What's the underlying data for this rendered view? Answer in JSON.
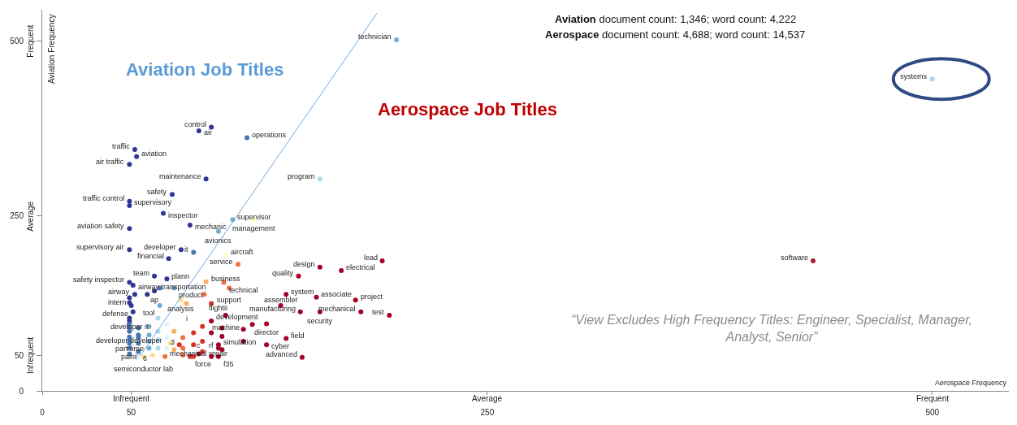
{
  "chart_data": {
    "type": "scatter",
    "xlabel": "Aerospace Frequency",
    "ylabel": "Aviation Frequency",
    "xlim": [
      0,
      543
    ],
    "ylim": [
      0,
      545
    ],
    "xticks": [
      0,
      50,
      250,
      500
    ],
    "yticks": [
      0,
      50,
      250,
      500
    ],
    "marker": "circle",
    "series": [
      {
        "type": "scatter",
        "x": [
          199,
          500,
          95,
          88,
          115,
          52,
          53,
          49,
          92,
          73,
          49,
          49,
          68,
          49,
          83,
          107,
          119,
          99,
          156,
          49,
          78,
          85,
          71,
          103,
          63,
          70,
          49,
          51,
          63,
          74,
          92,
          102,
          78,
          105,
          91,
          110,
          66,
          81,
          52,
          50,
          51,
          49,
          49,
          49,
          49,
          54,
          57,
          69,
          83,
          77,
          95,
          103,
          99,
          99,
          99,
          88,
          137,
          156,
          144,
          168,
          191,
          154,
          176,
          179,
          156,
          145,
          134,
          195,
          126,
          137,
          126,
          146,
          433,
          66,
          59,
          49,
          49,
          49,
          49,
          49,
          49,
          49,
          49,
          54,
          54,
          54,
          54,
          54,
          60,
          60,
          60,
          60,
          65,
          65,
          65,
          65,
          70,
          70,
          70,
          62,
          72,
          74,
          74,
          79,
          79,
          79,
          85,
          85,
          85,
          90,
          90,
          90,
          95,
          95,
          95,
          101,
          101,
          101,
          113,
          113,
          118
        ],
        "values": [
          502,
          446,
          377,
          372,
          362,
          345,
          335,
          324,
          303,
          281,
          271,
          265,
          254,
          232,
          237,
          245,
          245,
          228,
          303,
          202,
          202,
          198,
          189,
          194,
          164,
          160,
          155,
          151,
          143,
          147,
          156,
          155,
          130,
          147,
          138,
          181,
          122,
          125,
          138,
          122,
          113,
          104,
          85,
          73,
          61,
          49,
          49,
          49,
          49,
          66,
          125,
          108,
          66,
          61,
          49,
          53,
          138,
          177,
          164,
          172,
          186,
          134,
          130,
          113,
          113,
          113,
          122,
          108,
          96,
          75,
          66,
          48,
          186,
          147,
          138,
          133,
          126,
          100,
          95,
          90,
          77,
          68,
          53,
          90,
          80,
          76,
          68,
          56,
          92,
          80,
          71,
          61,
          104,
          85,
          73,
          61,
          95,
          76,
          61,
          51,
          68,
          59,
          85,
          51,
          61,
          76,
          49,
          66,
          83,
          56,
          71,
          92,
          49,
          83,
          100,
          59,
          78,
          90,
          71,
          88,
          95
        ],
        "colors": [
          "#74add1",
          "#abd9e9",
          "#313695",
          "#313695",
          "#4575b4",
          "#313695",
          "#313695",
          "#313695",
          "#313695",
          "#313695",
          "#313695",
          "#313695",
          "#313695",
          "#313695",
          "#313695",
          "#74add1",
          "#ffffbf",
          "#74add1",
          "#abd9e9",
          "#313695",
          "#313695",
          "#4575b4",
          "#313695",
          "#ffffbf",
          "#313695",
          "#313695",
          "#313695",
          "#313695",
          "#313695",
          "#74add1",
          "#fdae61",
          "#f46d43",
          "#fee090",
          "#f46d43",
          "#f46d43",
          "#f46d43",
          "#74add1",
          "#fdae61",
          "#313695",
          "#313695",
          "#313695",
          "#313695",
          "#4575b4",
          "#4575b4",
          "#4575b4",
          "#e0f3f8",
          "#fee090",
          "#f46d43",
          "#d73027",
          "#d73027",
          "#d73027",
          "#a50026",
          "#a50026",
          "#a50026",
          "#a50026",
          "#a50026",
          "#a50026",
          "#a50026",
          "#a50026",
          "#a50026",
          "#a50026",
          "#a50026",
          "#a50026",
          "#a50026",
          "#a50026",
          "#a50026",
          "#a50026",
          "#a50026",
          "#a50026",
          "#a50026",
          "#a50026",
          "#a50026",
          "#b2182b",
          "#4575b4",
          "#313695",
          "#313695",
          "#313695",
          "#313695",
          "#4575b4",
          "#4575b4",
          "#4575b4",
          "#4575b4",
          "#4575b4",
          "#4575b4",
          "#4575b4",
          "#4575b4",
          "#4575b4",
          "#4575b4",
          "#74add1",
          "#74add1",
          "#74add1",
          "#74add1",
          "#abd9e9",
          "#abd9e9",
          "#abd9e9",
          "#abd9e9",
          "#e0f3f8",
          "#e0f3f8",
          "#e0f3f8",
          "#fee090",
          "#fee090",
          "#fdae61",
          "#fdae61",
          "#f46d43",
          "#f46d43",
          "#f46d43",
          "#d73027",
          "#d73027",
          "#d73027",
          "#d73027",
          "#d73027",
          "#d73027",
          "#a50026",
          "#a50026",
          "#a50026",
          "#a50026",
          "#a50026",
          "#a50026",
          "#a50026",
          "#a50026",
          "#a50026"
        ]
      },
      {
        "type": "line",
        "x": [
          55,
          188
        ],
        "values": [
          50,
          540
        ],
        "color": "#6fa8dc",
        "line_style": "solid",
        "marker": "none"
      }
    ],
    "annotations": [
      "Aviation document count: 1,346; word count: 4,222",
      "Aerospace document count: 4,688; word count: 14,537",
      "Aviation Job Titles",
      "Aerospace Job Titles",
      "“View Excludes High Frequency Titles: Engineer, Specialist, Manager,\nAnalyst, Senior”",
      "Infrequent",
      "Average",
      "Frequent",
      "Infrequent",
      "Average",
      "Frequent",
      {
        "text": "technician",
        "x": 199,
        "y": 502
      },
      {
        "text": "systems",
        "x": 500,
        "y": 446
      },
      {
        "text": "control",
        "x": 95,
        "y": 377
      },
      {
        "text": "air",
        "x": 88,
        "y": 372
      },
      {
        "text": "operations",
        "x": 115,
        "y": 362
      },
      {
        "text": "traffic",
        "x": 52,
        "y": 345
      },
      {
        "text": "aviation",
        "x": 53,
        "y": 335
      },
      {
        "text": "air traffic",
        "x": 49,
        "y": 324
      },
      {
        "text": "maintenance",
        "x": 92,
        "y": 303
      },
      {
        "text": "safety",
        "x": 73,
        "y": 281
      },
      {
        "text": "traffic control",
        "x": 49,
        "y": 271
      },
      {
        "text": "supervisory",
        "x": 49,
        "y": 265
      },
      {
        "text": "inspector",
        "x": 68,
        "y": 254
      },
      {
        "text": "aviation safety",
        "x": 49,
        "y": 232
      },
      {
        "text": "mechanic",
        "x": 83,
        "y": 237
      },
      {
        "text": "supervisor",
        "x": 107,
        "y": 245
      },
      {
        "text": "management",
        "x": 119,
        "y": 245
      },
      {
        "text": "avionics",
        "x": 99,
        "y": 228
      },
      {
        "text": "program",
        "x": 156,
        "y": 303
      },
      {
        "text": "supervisory air",
        "x": 49,
        "y": 202
      },
      {
        "text": "developer",
        "x": 78,
        "y": 202
      },
      {
        "text": "it",
        "x": 85,
        "y": 198
      },
      {
        "text": "financial",
        "x": 71,
        "y": 189
      },
      {
        "text": "aircraft",
        "x": 103,
        "y": 194
      },
      {
        "text": "team",
        "x": 63,
        "y": 164
      },
      {
        "text": "plann",
        "x": 70,
        "y": 160
      },
      {
        "text": "safety inspector",
        "x": 49,
        "y": 155
      },
      {
        "text": "airway transportation",
        "x": 51,
        "y": 151
      },
      {
        "text": "ap",
        "x": 63,
        "y": 143
      },
      {
        "text": "product",
        "x": 74,
        "y": 147
      },
      {
        "text": "business",
        "x": 92,
        "y": 156
      },
      {
        "text": "technical",
        "x": 102,
        "y": 155
      },
      {
        "text": "analysis",
        "x": 78,
        "y": 130
      },
      {
        "text": "support",
        "x": 105,
        "y": 147
      },
      {
        "text": "flightii",
        "x": 91,
        "y": 138
      },
      {
        "text": "service",
        "x": 110,
        "y": 181
      },
      {
        "text": "tool",
        "x": 66,
        "y": 122
      },
      {
        "text": "i",
        "x": 81,
        "y": 125
      },
      {
        "text": "airway",
        "x": 52,
        "y": 138
      },
      {
        "text": "intern",
        "x": 50,
        "y": 122
      },
      {
        "text": "defense",
        "x": 51,
        "y": 113
      },
      {
        "text": "developer it",
        "x": 49,
        "y": 104
      },
      {
        "text": "developer developer",
        "x": 49,
        "y": 85
      },
      {
        "text": "part time",
        "x": 49,
        "y": 73
      },
      {
        "text": "paint",
        "x": 49,
        "y": 61
      },
      {
        "text": "6",
        "x": 54,
        "y": 49
      },
      {
        "text": "semiconductor lab",
        "x": 57,
        "y": 49
      },
      {
        "text": "mechanical repair",
        "x": 69,
        "y": 49
      },
      {
        "text": "force",
        "x": 83,
        "y": 49
      },
      {
        "text": "3",
        "x": 77,
        "y": 66
      },
      {
        "text": "development",
        "x": 95,
        "y": 125
      },
      {
        "text": "machine",
        "x": 103,
        "y": 108
      },
      {
        "text": "simulation",
        "x": 99,
        "y": 66
      },
      {
        "text": "rf",
        "x": 99,
        "y": 61
      },
      {
        "text": "f35",
        "x": 99,
        "y": 49
      },
      {
        "text": "c",
        "x": 88,
        "y": 53
      },
      {
        "text": "system",
        "x": 137,
        "y": 138
      },
      {
        "text": "design",
        "x": 156,
        "y": 177
      },
      {
        "text": "quality",
        "x": 144,
        "y": 164
      },
      {
        "text": "electrical",
        "x": 168,
        "y": 172
      },
      {
        "text": "lead",
        "x": 191,
        "y": 186
      },
      {
        "text": "associate",
        "x": 154,
        "y": 134
      },
      {
        "text": "project",
        "x": 176,
        "y": 130
      },
      {
        "text": "mechanical",
        "x": 179,
        "y": 113
      },
      {
        "text": "security",
        "x": 156,
        "y": 113
      },
      {
        "text": "manufacturing",
        "x": 145,
        "y": 113
      },
      {
        "text": "assembler",
        "x": 134,
        "y": 122
      },
      {
        "text": "test",
        "x": 195,
        "y": 108
      },
      {
        "text": "director",
        "x": 126,
        "y": 96
      },
      {
        "text": "field",
        "x": 137,
        "y": 75
      },
      {
        "text": "cyber",
        "x": 126,
        "y": 66
      },
      {
        "text": "advanced",
        "x": 146,
        "y": 48
      },
      {
        "text": "software",
        "x": 433,
        "y": 186
      }
    ]
  }
}
